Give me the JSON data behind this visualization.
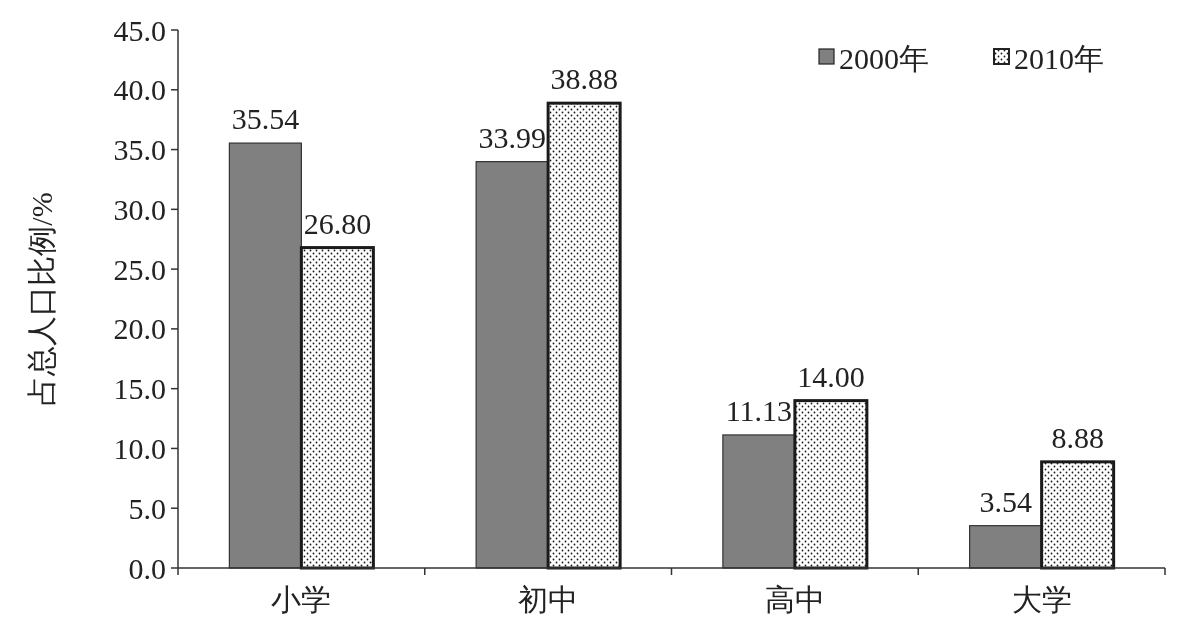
{
  "chart_data": {
    "type": "bar",
    "ylabel": "占总人口比例/%",
    "categories": [
      "小学",
      "初中",
      "高中",
      "大学"
    ],
    "series": [
      {
        "name": "2000年",
        "color": "#808080",
        "values": [
          35.54,
          33.99,
          11.13,
          3.54
        ],
        "value_labels": [
          "35.54",
          "33.99",
          "11.13",
          "3.54"
        ]
      },
      {
        "name": "2010年",
        "color": "#1a1a1a",
        "values": [
          26.8,
          38.88,
          14.0,
          8.88
        ],
        "value_labels": [
          "26.80",
          "38.88",
          "14.00",
          "8.88"
        ]
      }
    ],
    "ylim": [
      0,
      45
    ],
    "yticks": [
      {
        "value": 0,
        "label": "0.0"
      },
      {
        "value": 5,
        "label": "5.0"
      },
      {
        "value": 10,
        "label": "10.0"
      },
      {
        "value": 15,
        "label": "15.0"
      },
      {
        "value": 20,
        "label": "20.0"
      },
      {
        "value": 25,
        "label": "25.0"
      },
      {
        "value": 30,
        "label": "30.0"
      },
      {
        "value": 35,
        "label": "35.0"
      },
      {
        "value": 40,
        "label": "40.0"
      },
      {
        "value": 45,
        "label": "45.0"
      }
    ],
    "grid": false,
    "legend": "top right"
  }
}
